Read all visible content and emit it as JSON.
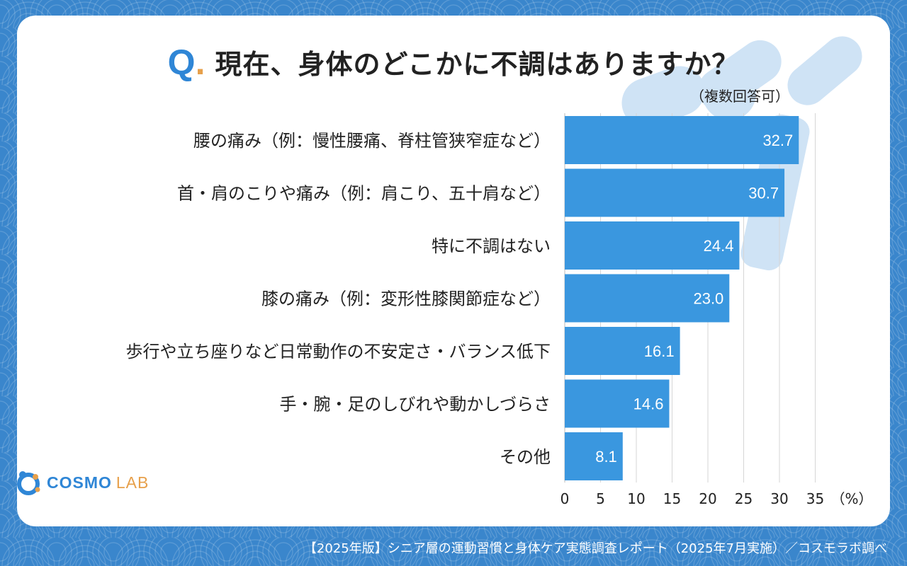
{
  "header": {
    "q_letter": "Q",
    "q_dot": ".",
    "title": "現在、身体のどこかに不調はありますか？",
    "subtitle": "（複数回答可）"
  },
  "colors": {
    "bar": "#3a97df",
    "accent_blue": "#2f86d6",
    "accent_orange": "#e7a04b",
    "grid": "#d6d6d6",
    "background": "#3a86cc"
  },
  "chart_data": {
    "type": "bar",
    "orientation": "horizontal",
    "categories": [
      "腰の痛み（例：慢性腰痛、脊柱管狭窄症など）",
      "首・肩のこりや痛み（例：肩こり、五十肩など）",
      "特に不調はない",
      "膝の痛み（例：変形性膝関節症など）",
      "歩行や立ち座りなど日常動作の不安定さ・バランス低下",
      "手・腕・足のしびれや動かしづらさ",
      "その他"
    ],
    "values": [
      32.7,
      30.7,
      24.4,
      23.0,
      16.1,
      14.6,
      8.1
    ],
    "value_labels": [
      "32.7",
      "30.7",
      "24.4",
      "23.0",
      "16.1",
      "14.6",
      "8.1"
    ],
    "title": "現在、身体のどこかに不調はありますか？",
    "xlabel": "（%）",
    "ylabel": "",
    "xlim": [
      0,
      35
    ],
    "xticks": [
      "0",
      "5",
      "10",
      "15",
      "20",
      "25",
      "30",
      "35"
    ],
    "grid": true
  },
  "logo": {
    "name_main": "COSMO",
    "name_sub": "LAB"
  },
  "footer": {
    "text": "【2025年版】シニア層の運動習慣と身体ケア実態調査レポート（2025年7月実施）／コスモラボ調べ"
  }
}
